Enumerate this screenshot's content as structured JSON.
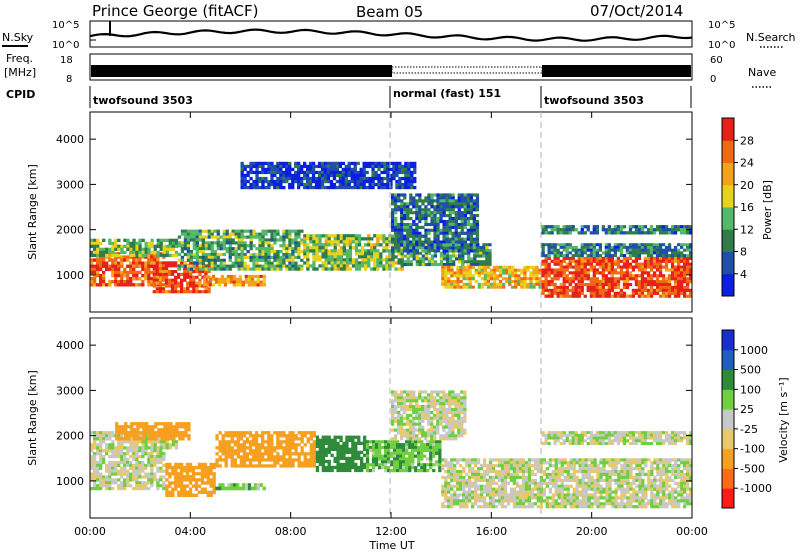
{
  "header": {
    "station": "Prince George (fitACF)",
    "beam": "Beam 05",
    "date": "07/Oct/2014"
  },
  "top_panels": {
    "nsky_label": "N.Sky",
    "nsearch_label": "N.Search",
    "noise_ticks_left": [
      "10^5",
      "10^0"
    ],
    "noise_ticks_right": [
      "10^5",
      "10^0"
    ],
    "freq_label": "Freq.",
    "freq_unit": "[MHz]",
    "freq_ticks": [
      "18",
      "8"
    ],
    "nave_label": "Nave",
    "nave_ticks": [
      "60",
      "0"
    ],
    "cpid_label": "CPID",
    "cpid_segments": [
      {
        "name": "twofsound 3503",
        "start_hr": 0,
        "end_hr": 12
      },
      {
        "name": "normal (fast) 151",
        "start_hr": 12,
        "end_hr": 18
      },
      {
        "name": "twofsound 3503",
        "start_hr": 18,
        "end_hr": 24
      }
    ]
  },
  "colors": {
    "power_scale": [
      "#0a1fe0",
      "#1f4fa8",
      "#2e7d4a",
      "#54b86a",
      "#e8d21a",
      "#f3a21a",
      "#f06a14",
      "#e8201a"
    ],
    "velocity_scale": [
      "#ff1a1a",
      "#ff6a14",
      "#f7a020",
      "#e8c86a",
      "#c8c8c8",
      "#6fcf3f",
      "#2e8b3a",
      "#1f5fc0",
      "#1a2fd0"
    ]
  },
  "chart_data": [
    {
      "type": "heatmap",
      "title": "Power",
      "xlabel": "Time UT",
      "ylabel": "Slant Range [km]",
      "xlim": [
        0,
        24
      ],
      "ylim": [
        180,
        4600
      ],
      "x_ticks": [
        "00:00",
        "04:00",
        "08:00",
        "12:00",
        "16:00",
        "20:00",
        "00:00"
      ],
      "y_ticks": [
        1000,
        2000,
        3000,
        4000
      ],
      "colorbar_label": "Power [dB]",
      "colorbar_ticks": [
        4,
        8,
        12,
        16,
        20,
        24,
        28
      ],
      "grid": false,
      "regions": [
        {
          "start_hr": 0.0,
          "end_hr": 3.0,
          "range_lo_km": 750,
          "range_hi_km": 1500,
          "value": 26
        },
        {
          "start_hr": 0.0,
          "end_hr": 3.5,
          "range_lo_km": 1400,
          "range_hi_km": 1800,
          "value": 14
        },
        {
          "start_hr": 2.5,
          "end_hr": 4.8,
          "range_lo_km": 600,
          "range_hi_km": 1300,
          "value": 27
        },
        {
          "start_hr": 4.5,
          "end_hr": 7.0,
          "range_lo_km": 750,
          "range_hi_km": 1000,
          "value": 22
        },
        {
          "start_hr": 3.5,
          "end_hr": 8.5,
          "range_lo_km": 1100,
          "range_hi_km": 2000,
          "value": 13
        },
        {
          "start_hr": 8.5,
          "end_hr": 12.5,
          "range_lo_km": 1100,
          "range_hi_km": 1900,
          "value": 15
        },
        {
          "start_hr": 12.5,
          "end_hr": 16.0,
          "range_lo_km": 1200,
          "range_hi_km": 1700,
          "value": 12
        },
        {
          "start_hr": 14.0,
          "end_hr": 18.0,
          "range_lo_km": 700,
          "range_hi_km": 1200,
          "value": 20
        },
        {
          "start_hr": 18.0,
          "end_hr": 24.0,
          "range_lo_km": 500,
          "range_hi_km": 1400,
          "value": 27
        },
        {
          "start_hr": 18.0,
          "end_hr": 24.0,
          "range_lo_km": 1400,
          "range_hi_km": 1700,
          "value": 10
        },
        {
          "start_hr": 18.0,
          "end_hr": 24.0,
          "range_lo_km": 1900,
          "range_hi_km": 2100,
          "value": 10
        },
        {
          "start_hr": 6.0,
          "end_hr": 13.0,
          "range_lo_km": 2900,
          "range_hi_km": 3500,
          "value": 5
        },
        {
          "start_hr": 12.0,
          "end_hr": 15.5,
          "range_lo_km": 1500,
          "range_hi_km": 2800,
          "value": 9
        }
      ]
    },
    {
      "type": "heatmap",
      "title": "Velocity",
      "xlabel": "Time UT",
      "ylabel": "Slant Range [km]",
      "xlim": [
        0,
        24
      ],
      "ylim": [
        180,
        4600
      ],
      "x_ticks": [
        "00:00",
        "04:00",
        "08:00",
        "12:00",
        "16:00",
        "20:00",
        "00:00"
      ],
      "y_ticks": [
        1000,
        2000,
        3000,
        4000
      ],
      "colorbar_label": "Velocity [m s⁻¹]",
      "colorbar_ticks": [
        "1000",
        "500",
        "100",
        "25",
        "-25",
        "-100",
        "-500",
        "-1000"
      ],
      "grid": false,
      "regions": [
        {
          "start_hr": 0.0,
          "end_hr": 3.0,
          "range_lo_km": 800,
          "range_hi_km": 1700,
          "value": 0
        },
        {
          "start_hr": 0.0,
          "end_hr": 3.5,
          "range_lo_km": 1700,
          "range_hi_km": 2100,
          "value": 0
        },
        {
          "start_hr": 3.0,
          "end_hr": 5.0,
          "range_lo_km": 650,
          "range_hi_km": 1400,
          "value": -400
        },
        {
          "start_hr": 5.0,
          "end_hr": 7.0,
          "range_lo_km": 800,
          "range_hi_km": 950,
          "value": 60
        },
        {
          "start_hr": 5.0,
          "end_hr": 9.0,
          "range_lo_km": 1300,
          "range_hi_km": 2100,
          "value": -300
        },
        {
          "start_hr": 9.0,
          "end_hr": 11.0,
          "range_lo_km": 1200,
          "range_hi_km": 2000,
          "value": 400
        },
        {
          "start_hr": 11.0,
          "end_hr": 14.0,
          "range_lo_km": 1200,
          "range_hi_km": 1900,
          "value": 80
        },
        {
          "start_hr": 12.0,
          "end_hr": 15.0,
          "range_lo_km": 1900,
          "range_hi_km": 3000,
          "value": 0
        },
        {
          "start_hr": 14.0,
          "end_hr": 24.0,
          "range_lo_km": 400,
          "range_hi_km": 1500,
          "value": 0
        },
        {
          "start_hr": 18.0,
          "end_hr": 24.0,
          "range_lo_km": 1800,
          "range_hi_km": 2100,
          "value": 0
        },
        {
          "start_hr": 1.0,
          "end_hr": 4.0,
          "range_lo_km": 1900,
          "range_hi_km": 2300,
          "value": -300
        }
      ]
    }
  ]
}
